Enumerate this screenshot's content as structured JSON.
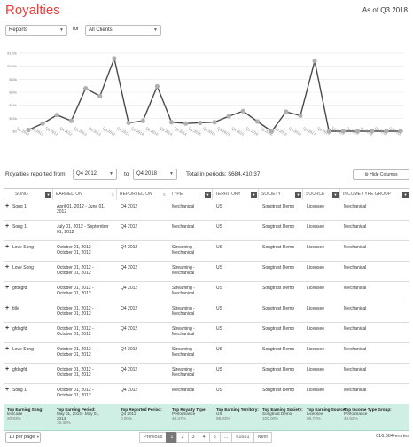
{
  "header": {
    "title": "Royalties",
    "as_of": "As of Q3 2018"
  },
  "filters": {
    "reports_select": "Reports",
    "for_label": "for",
    "clients_select": "All Clients"
  },
  "chart_data": {
    "type": "line",
    "categories": [
      "Q1 2012",
      "Q2 2012",
      "Q3 2012",
      "Q4 2012",
      "Q1 2013",
      "Q2 2013",
      "Q3 2013",
      "Q4 2013",
      "Q1 2014",
      "Q2 2014",
      "Q3 2014",
      "Q4 2014",
      "Q1 2015",
      "Q2 2015",
      "Q3 2015",
      "Q4 2015",
      "Q1 2016",
      "Q2 2016",
      "Q3 2016",
      "Q4 2016",
      "Q1 2017",
      "Q2 2017",
      "Q3 2017",
      "Q4 2017",
      "Q1 2018",
      "Q2 2018",
      "Q3 2018"
    ],
    "values": [
      2,
      12,
      25,
      16,
      66,
      54,
      112,
      13,
      16,
      69,
      14,
      12,
      13,
      14,
      23,
      31,
      15,
      0,
      30,
      24,
      108,
      0,
      0,
      0,
      0,
      0,
      0
    ],
    "yticks": [
      "$0",
      "$20k",
      "$40k",
      "$60k",
      "$80k",
      "$100k",
      "$120k"
    ],
    "ylim": [
      0,
      120
    ],
    "grid": true,
    "line_color": "#4a4a4a",
    "point_color": "#b0b0b0"
  },
  "controls": {
    "reported_from_label": "Royalties reported from",
    "from_value": "Q4 2012",
    "to_label": "to",
    "to_value": "Q4 2018",
    "total_label": "Total in periods: $684,410.37",
    "hide_columns_label": "Hide Columns"
  },
  "table": {
    "headers": [
      "SONG",
      "EARNED ON",
      "REPORTED ON",
      "TYPE",
      "TERRITORY",
      "SOCIETY",
      "SOURCE",
      "INCOME TYPE GROUP"
    ],
    "rows": [
      [
        "Song 1",
        "April 01, 2012 - June 01,\n2012",
        "Q4 2012",
        "Mechanical",
        "US",
        "Songtrust Demo",
        "Licensee",
        "Mechanical"
      ],
      [
        "Song 1",
        "July 01, 2012 - September\n01, 2012",
        "Q4 2012",
        "Mechanical",
        "US",
        "Songtrust Demo",
        "Licensee",
        "Mechanical"
      ],
      [
        "Love Song",
        "October 01, 2012 -\nOctober 01, 2012",
        "Q4 2012",
        "Streaming -\nMechanical",
        "US",
        "Songtrust Demo",
        "Licensee",
        "Mechanical"
      ],
      [
        "Love Song",
        "October 01, 2012 -\nOctober 01, 2012",
        "Q4 2012",
        "Streaming -\nMechanical",
        "US",
        "Songtrust Demo",
        "Licensee",
        "Mechanical"
      ],
      [
        "gfdsgfd",
        "October 01, 2012 -\nOctober 01, 2012",
        "Q4 2012",
        "Streaming -\nMechanical",
        "US",
        "Songtrust Demo",
        "Licensee",
        "Mechanical"
      ],
      [
        "title",
        "October 01, 2012 -\nOctober 01, 2012",
        "Q4 2012",
        "Streaming -\nMechanical",
        "US",
        "Songtrust Demo",
        "Licensee",
        "Mechanical"
      ],
      [
        "gfdsgfd",
        "October 01, 2012 -\nOctober 01, 2012",
        "Q4 2012",
        "Streaming -\nMechanical",
        "US",
        "Songtrust Demo",
        "Licensee",
        "Mechanical"
      ],
      [
        "Love Song",
        "October 01, 2012 -\nOctober 01, 2012",
        "Q4 2012",
        "Streaming -\nMechanical",
        "US",
        "Songtrust Demo",
        "Licensee",
        "Mechanical"
      ],
      [
        "gfdsgfd",
        "October 01, 2012 -\nOctober 01, 2012",
        "Q4 2012",
        "Streaming -\nMechanical",
        "US",
        "Songtrust Demo",
        "Licensee",
        "Mechanical"
      ],
      [
        "Song 1",
        "October 01, 2012 -\nOctober 01, 2012",
        "Q4 2012",
        "Mechanical",
        "US",
        "Songtrust Demo",
        "Licensee",
        "Mechanical"
      ]
    ],
    "summary": [
      {
        "title": "Top Earning Song:",
        "value": "textcode",
        "pct": "20.93%"
      },
      {
        "title": "Top Earning Period:",
        "value": "May 01, 2014 - May 01, 2014",
        "pct": "16.46%"
      },
      {
        "title": "Top Reported Period:",
        "value": "Q4 2012",
        "pct": "0.00%"
      },
      {
        "title": "Top Royalty Type:",
        "value": "Performance",
        "pct": "40.47%"
      },
      {
        "title": "Top Earning Territory:",
        "value": "US",
        "pct": "98.33%"
      },
      {
        "title": "Top Earning Society:",
        "value": "Songtrust Demo",
        "pct": "100.00%"
      },
      {
        "title": "Top Earning Source:",
        "value": "Licensee",
        "pct": "99.73%"
      },
      {
        "title": "Top Income Type Group:",
        "value": "Performance",
        "pct": "43.62%"
      }
    ]
  },
  "footer": {
    "per_page": "10 per page",
    "pages": [
      "Previous",
      "1",
      "2",
      "3",
      "4",
      "5",
      "...",
      "61661",
      "Next"
    ],
    "active_page": "1",
    "entries": "616,604 entries"
  }
}
